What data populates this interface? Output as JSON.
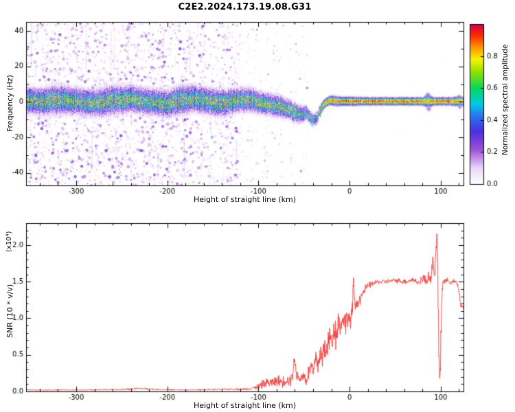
{
  "title": "C2E2.2024.173.19.08.G31",
  "chart_data": [
    {
      "id": "spectrogram",
      "type": "heatmap",
      "xlabel": "Height of straight line (km)",
      "ylabel": "Frequency (Hz)",
      "xlim": [
        -355,
        125
      ],
      "ylim": [
        -47,
        45
      ],
      "xticks": [
        -300,
        -200,
        -100,
        0,
        100
      ],
      "yticks": [
        -40,
        -20,
        0,
        20,
        40
      ],
      "colorbar": {
        "label": "Normalized spectral amplitude",
        "ticks": [
          0.0,
          0.2,
          0.4,
          0.6,
          0.8
        ],
        "range": [
          0,
          1
        ],
        "colormap": [
          {
            "v": 0.0,
            "c": "#ffffff"
          },
          {
            "v": 0.1,
            "c": "#ead9f7"
          },
          {
            "v": 0.22,
            "c": "#9b4fd6"
          },
          {
            "v": 0.33,
            "c": "#4b2fe0"
          },
          {
            "v": 0.42,
            "c": "#2f6df0"
          },
          {
            "v": 0.5,
            "c": "#00c8e8"
          },
          {
            "v": 0.6,
            "c": "#00d860"
          },
          {
            "v": 0.7,
            "c": "#8ee000"
          },
          {
            "v": 0.78,
            "c": "#f4f400"
          },
          {
            "v": 0.86,
            "c": "#ff9000"
          },
          {
            "v": 0.93,
            "c": "#ff2800"
          },
          {
            "v": 1.0,
            "c": "#d4004c"
          }
        ]
      },
      "ridge": {
        "x": [
          -355,
          -340,
          -320,
          -300,
          -280,
          -260,
          -240,
          -220,
          -200,
          -185,
          -170,
          -155,
          -140,
          -125,
          -110,
          -100,
          -90,
          -80,
          -70,
          -62,
          -55,
          -48,
          -44,
          -40,
          -36,
          -32,
          -28,
          -24,
          -20,
          -15,
          -10,
          -5,
          0,
          5,
          10,
          20,
          30,
          40,
          50,
          60,
          70,
          80,
          84,
          88,
          92,
          96,
          100,
          110,
          120,
          125
        ],
        "center": [
          1,
          0.5,
          1.5,
          0.5,
          -0.5,
          1,
          2,
          0.5,
          -1,
          1.5,
          2,
          0.5,
          -0.5,
          1,
          1.5,
          0,
          -1,
          -2,
          -3.5,
          -5.5,
          -7,
          -6,
          -8,
          -10,
          -9,
          -4,
          -1,
          0.5,
          1,
          0.5,
          0.5,
          0.5,
          0.5,
          0.5,
          0.5,
          0.5,
          0.5,
          0.5,
          0.5,
          0.5,
          0.5,
          0.5,
          0.5,
          0.5,
          0.5,
          0.5,
          0.5,
          0.5,
          0.5,
          0.5
        ],
        "width": [
          6,
          6,
          6.5,
          6,
          6,
          6.5,
          6,
          6,
          6,
          6.5,
          6,
          6,
          6,
          5.5,
          5.5,
          5,
          5,
          5,
          4.5,
          4.5,
          4,
          3.5,
          3,
          3,
          2.5,
          2.5,
          2,
          2,
          2.2,
          2.2,
          2,
          2,
          2,
          2,
          1.9,
          1.8,
          1.8,
          1.8,
          1.8,
          1.8,
          1.8,
          1.8,
          2.8,
          2.6,
          1.8,
          1.8,
          1.8,
          1.8,
          2.2,
          2
        ],
        "intensity": [
          0.6,
          0.58,
          0.62,
          0.58,
          0.6,
          0.62,
          0.6,
          0.58,
          0.6,
          0.62,
          0.6,
          0.58,
          0.62,
          0.6,
          0.58,
          0.62,
          0.6,
          0.58,
          0.6,
          0.58,
          0.55,
          0.5,
          0.52,
          0.45,
          0.5,
          0.7,
          0.85,
          0.9,
          0.88,
          0.92,
          0.9,
          0.92,
          0.92,
          0.95,
          0.92,
          0.95,
          0.95,
          0.95,
          0.95,
          0.95,
          0.95,
          0.95,
          0.8,
          0.85,
          0.95,
          0.95,
          0.95,
          0.95,
          0.9,
          0.92
        ]
      },
      "noise": {
        "seed": 42,
        "dense_region": [
          -355,
          -122
        ],
        "sparse_region": [
          -122,
          -45
        ],
        "dense_count": 2600,
        "sparse_count": 260,
        "streak_count": 45
      },
      "blobs": [
        {
          "x": -46,
          "y": -9,
          "amp": 0.55,
          "r": 2.2
        },
        {
          "x": -41,
          "y": -13,
          "amp": 0.5,
          "r": 2.0
        },
        {
          "x": -36,
          "y": -6,
          "amp": 0.45,
          "r": 2.0
        },
        {
          "x": 86,
          "y": 4,
          "amp": 0.32,
          "r": 3.0
        },
        {
          "x": 87,
          "y": -4,
          "amp": 0.3,
          "r": 3.0
        },
        {
          "x": 120,
          "y": 3,
          "amp": 0.25,
          "r": 2.5
        },
        {
          "x": 121,
          "y": -3,
          "amp": 0.25,
          "r": 2.5
        }
      ]
    },
    {
      "id": "snr",
      "type": "line",
      "series_name": "SNR",
      "xlabel": "Height of straight line (km)",
      "ylabel": "SNR (10 * v/v)",
      "y_scale_label": "(x10⁴)",
      "xlim": [
        -355,
        125
      ],
      "ylim": [
        0,
        2.3
      ],
      "xticks": [
        -300,
        -200,
        -100,
        0,
        100
      ],
      "yticks": [
        0.0,
        0.5,
        1.0,
        1.5,
        2.0
      ],
      "line_color": "#f23b35",
      "x": [
        -355,
        -300,
        -250,
        -230,
        -210,
        -180,
        -150,
        -130,
        -115,
        -105,
        -100,
        -95,
        -90,
        -85,
        -80,
        -75,
        -70,
        -65,
        -62,
        -60,
        -58,
        -55,
        -52,
        -50,
        -47,
        -45,
        -42,
        -40,
        -37,
        -35,
        -32,
        -30,
        -27,
        -25,
        -22,
        -20,
        -17,
        -15,
        -12,
        -10,
        -7,
        -5,
        -2,
        0,
        3,
        4,
        6,
        8,
        12,
        16,
        20,
        25,
        30,
        40,
        50,
        60,
        70,
        75,
        80,
        84,
        87,
        89,
        91,
        93,
        95,
        96,
        97,
        98,
        99,
        100,
        101,
        102,
        105,
        110,
        115,
        118,
        120,
        122,
        125
      ],
      "y": [
        0.02,
        0.02,
        0.025,
        0.04,
        0.025,
        0.02,
        0.025,
        0.03,
        0.03,
        0.05,
        0.07,
        0.1,
        0.12,
        0.12,
        0.15,
        0.13,
        0.16,
        0.15,
        0.3,
        0.45,
        0.2,
        0.18,
        0.22,
        0.2,
        0.15,
        0.25,
        0.35,
        0.25,
        0.45,
        0.35,
        0.55,
        0.45,
        0.65,
        0.55,
        0.75,
        0.65,
        0.9,
        0.75,
        1.0,
        0.85,
        1.05,
        0.9,
        1.05,
        0.95,
        1.1,
        1.55,
        1.15,
        1.2,
        1.3,
        1.38,
        1.44,
        1.47,
        1.5,
        1.5,
        1.52,
        1.5,
        1.53,
        1.48,
        1.55,
        1.5,
        1.62,
        1.5,
        1.8,
        1.55,
        2.0,
        2.25,
        1.2,
        0.4,
        0.05,
        0.7,
        1.3,
        1.5,
        1.52,
        1.5,
        1.5,
        1.48,
        1.35,
        1.18,
        1.15
      ],
      "noise_amp": [
        0.01,
        0.01,
        0.012,
        0.02,
        0.012,
        0.01,
        0.012,
        0.015,
        0.02,
        0.03,
        0.05,
        0.07,
        0.08,
        0.09,
        0.1,
        0.09,
        0.11,
        0.1,
        0.15,
        0.1,
        0.12,
        0.1,
        0.12,
        0.14,
        0.1,
        0.15,
        0.2,
        0.18,
        0.22,
        0.2,
        0.25,
        0.22,
        0.25,
        0.22,
        0.25,
        0.25,
        0.25,
        0.25,
        0.22,
        0.22,
        0.2,
        0.2,
        0.18,
        0.18,
        0.15,
        0.1,
        0.12,
        0.12,
        0.1,
        0.08,
        0.06,
        0.05,
        0.04,
        0.04,
        0.04,
        0.05,
        0.05,
        0.06,
        0.08,
        0.1,
        0.12,
        0.1,
        0.1,
        0.08,
        0.08,
        0.05,
        0.1,
        0.1,
        0.03,
        0.1,
        0.08,
        0.06,
        0.05,
        0.04,
        0.04,
        0.05,
        0.06,
        0.05,
        0.05
      ]
    }
  ]
}
